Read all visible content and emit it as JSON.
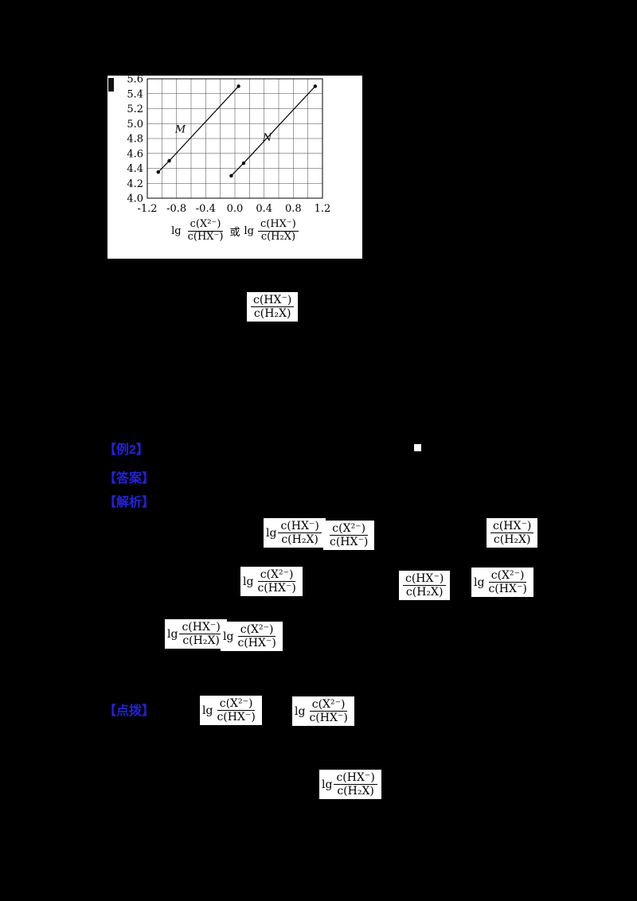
{
  "window": {
    "background": "#000000"
  },
  "chart": {
    "x_title": {
      "lg1": "lg",
      "frac1_num": "c(X²⁻)",
      "frac1_den": "c(HX⁻)",
      "or": "或",
      "lg2": "lg",
      "frac2_num": "c(HX⁻)",
      "frac2_den": "c(H₂X)"
    }
  },
  "chart_data": {
    "type": "line",
    "title": "",
    "xlabel": "lg c(X²⁻)/c(HX⁻) 或 lg c(HX⁻)/c(H₂X)",
    "ylabel": "",
    "xlim": [
      -1.2,
      1.2
    ],
    "ylim": [
      4.0,
      5.6
    ],
    "grid": true,
    "grid_step": 0.2,
    "x_ticks": [
      -1.2,
      -0.8,
      -0.4,
      0.0,
      0.4,
      0.8,
      1.2
    ],
    "y_ticks": [
      4.0,
      4.2,
      4.4,
      4.6,
      4.8,
      5.0,
      5.2,
      5.4,
      5.6
    ],
    "series": [
      {
        "name": "M",
        "label_pos": [
          -0.82,
          4.88
        ],
        "points": [
          [
            -1.05,
            4.35
          ],
          [
            -0.9,
            4.5
          ],
          [
            0.05,
            5.5
          ]
        ]
      },
      {
        "name": "N",
        "label_pos": [
          0.38,
          4.77
        ],
        "points": [
          [
            -0.05,
            4.3
          ],
          [
            0.12,
            4.47
          ],
          [
            1.1,
            5.5
          ]
        ]
      }
    ]
  },
  "labels": {
    "example": "【例2】",
    "answer": "【答案】",
    "analysis": "【解析】",
    "tip": "【点拨】"
  },
  "chips": [
    {
      "prefix": "",
      "num": "c(HX⁻)",
      "den": "c(H₂X)",
      "suffix": ""
    },
    {
      "prefix": "lg",
      "num": "c(HX⁻)",
      "den": "c(H₂X)",
      "suffix": ""
    },
    {
      "prefix": "",
      "num": "c(X²⁻)",
      "den": "c(HX⁻)",
      "suffix": ""
    },
    {
      "prefix": "",
      "num": "c(HX⁻)",
      "den": "c(H₂X)",
      "suffix": ""
    },
    {
      "prefix": "lg",
      "num": "c(X²⁻)",
      "den": "c(HX⁻)",
      "suffix": ""
    },
    {
      "prefix": "",
      "num": "c(HX⁻)",
      "den": "c(H₂X)",
      "suffix": ""
    },
    {
      "prefix": "lg",
      "num": "c(X²⁻)",
      "den": "c(HX⁻)",
      "suffix": ""
    },
    {
      "prefix": "lg",
      "num": "c(HX⁻)",
      "den": "c(H₂X)",
      "suffix": ""
    },
    {
      "prefix": "lg",
      "num": "c(X²⁻)",
      "den": "c(HX⁻)",
      "suffix": ""
    },
    {
      "prefix": "lg",
      "num": "c(X²⁻)",
      "den": "c(HX⁻)",
      "suffix": ""
    },
    {
      "prefix": "lg",
      "num": "c(X²⁻)",
      "den": "c(HX⁻)",
      "suffix": ""
    },
    {
      "prefix": "lg",
      "num": "c(HX⁻)",
      "den": "c(H₂X)",
      "suffix": ""
    }
  ]
}
